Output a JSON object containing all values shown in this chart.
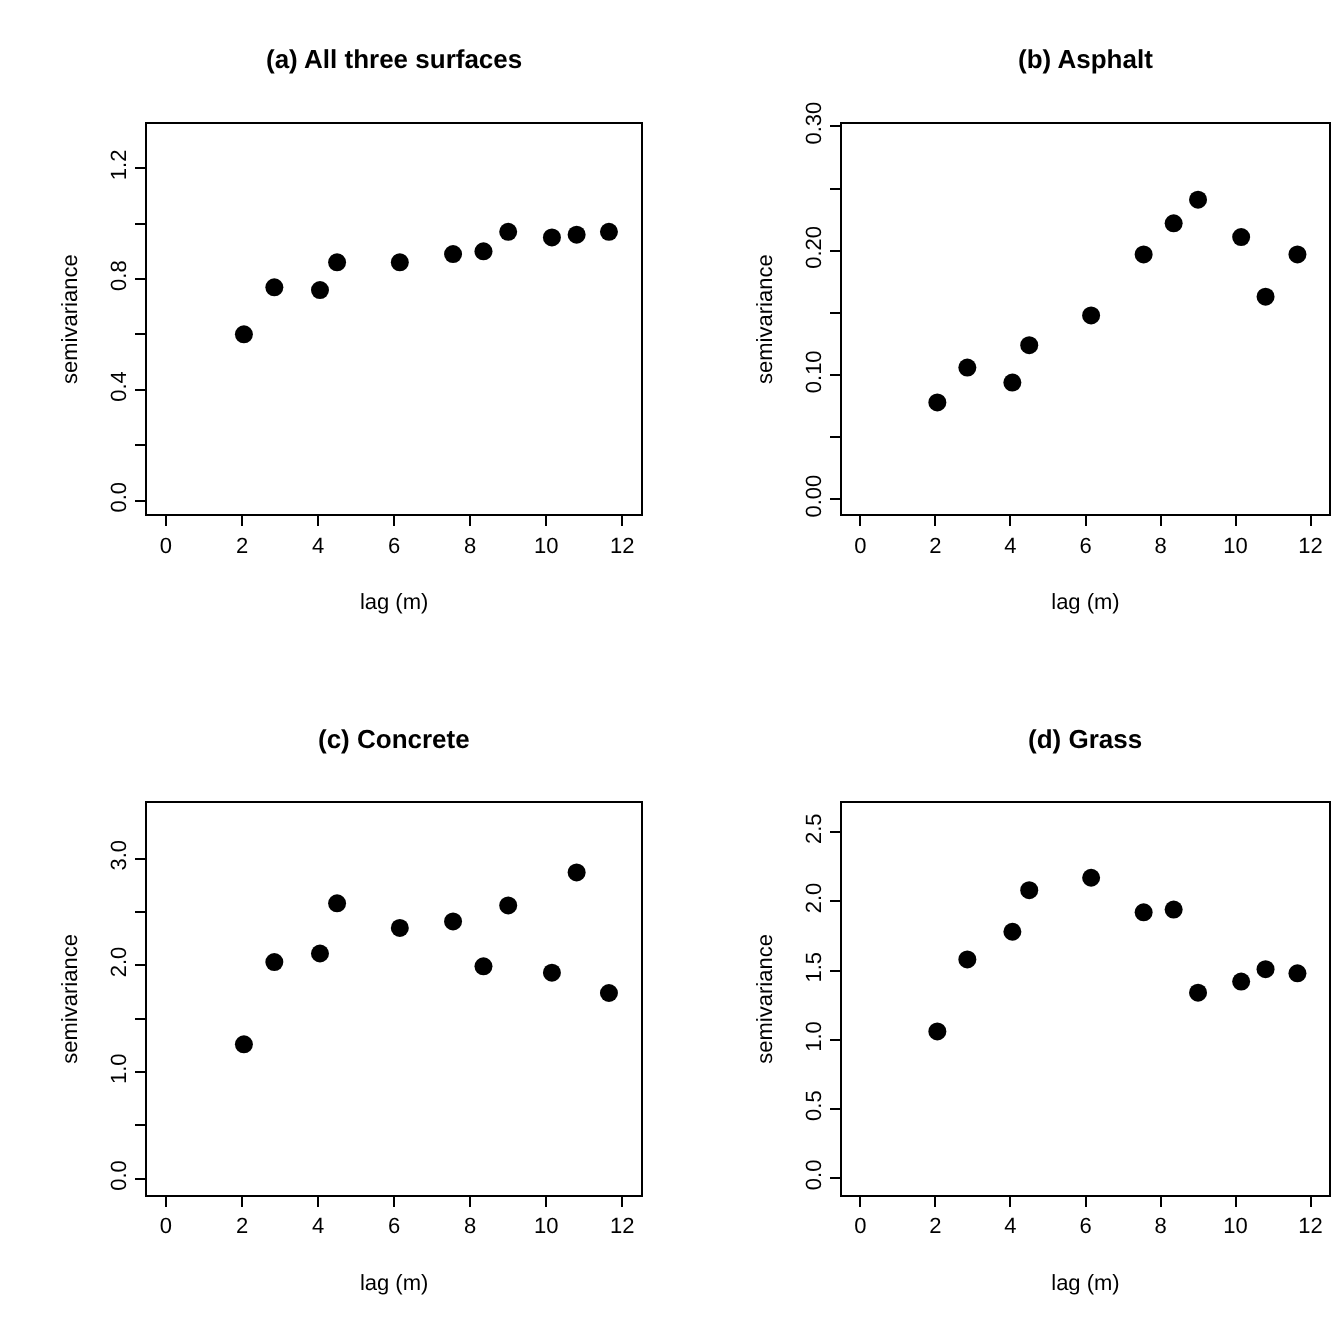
{
  "chart_data": [
    {
      "type": "scatter",
      "title": "(a) All three surfaces",
      "xlabel": "lag (m)",
      "ylabel": "semivariance",
      "marker": "circle",
      "x": [
        2.05,
        2.85,
        4.05,
        4.5,
        6.15,
        7.55,
        8.35,
        9.0,
        10.15,
        10.8,
        11.65
      ],
      "series": [
        {
          "color": "#000000",
          "values": [
            0.6,
            0.77,
            0.76,
            0.86,
            0.86,
            0.89,
            0.9,
            0.97,
            0.95,
            0.96,
            0.97
          ]
        }
      ],
      "xlim": [
        -0.5,
        12.5
      ],
      "xticks": [
        0,
        2,
        4,
        6,
        8,
        10,
        12
      ],
      "ylim": [
        -0.05,
        1.36
      ],
      "yticks": [
        {
          "value": 0,
          "label": "0.0"
        },
        {
          "value": 0.2,
          "label": null
        },
        0.4,
        {
          "value": 0.6,
          "label": null
        },
        0.8,
        {
          "value": 1.0,
          "label": null
        },
        1.2
      ]
    },
    {
      "type": "scatter",
      "title": "(b) Asphalt",
      "xlabel": "lag (m)",
      "ylabel": "semivariance",
      "marker": "circle",
      "x": [
        2.05,
        2.85,
        4.05,
        4.5,
        6.15,
        7.55,
        8.35,
        9.0,
        10.15,
        10.8,
        11.65
      ],
      "series": [
        {
          "color": "#000000",
          "values": [
            0.078,
            0.106,
            0.094,
            0.124,
            0.148,
            0.197,
            0.222,
            0.241,
            0.211,
            0.163,
            0.197
          ]
        }
      ],
      "xlim": [
        -0.5,
        12.5
      ],
      "xticks": [
        0,
        2,
        4,
        6,
        8,
        10,
        12
      ],
      "ylim": [
        -0.012,
        0.302
      ],
      "yticks": [
        {
          "value": 0.0,
          "label": "0.00"
        },
        {
          "value": 0.05,
          "label": null
        },
        {
          "value": 0.1,
          "label": "0.10"
        },
        {
          "value": 0.15,
          "label": null
        },
        {
          "value": 0.2,
          "label": "0.20"
        },
        {
          "value": 0.25,
          "label": null
        },
        {
          "value": 0.3,
          "label": "0.30"
        }
      ]
    },
    {
      "type": "scatter",
      "title": "(c) Concrete",
      "xlabel": "lag (m)",
      "ylabel": "semivariance",
      "marker": "circle",
      "x": [
        2.05,
        2.85,
        4.05,
        4.5,
        6.15,
        7.55,
        8.35,
        9.0,
        10.15,
        10.8,
        11.65
      ],
      "series": [
        {
          "color": "#000000",
          "values": [
            1.26,
            2.03,
            2.11,
            2.58,
            2.35,
            2.41,
            1.99,
            2.56,
            1.93,
            2.87,
            1.74
          ]
        }
      ],
      "xlim": [
        -0.5,
        12.5
      ],
      "xticks": [
        0,
        2,
        4,
        6,
        8,
        10,
        12
      ],
      "ylim": [
        -0.15,
        3.52
      ],
      "yticks": [
        {
          "value": 0,
          "label": "0.0"
        },
        {
          "value": 0.5,
          "label": null
        },
        {
          "value": 1,
          "label": "1.0"
        },
        {
          "value": 1.5,
          "label": null
        },
        {
          "value": 2,
          "label": "2.0"
        },
        {
          "value": 2.5,
          "label": null
        },
        {
          "value": 3,
          "label": "3.0"
        }
      ]
    },
    {
      "type": "scatter",
      "title": "(d) Grass",
      "xlabel": "lag (m)",
      "ylabel": "semivariance",
      "marker": "circle",
      "x": [
        2.05,
        2.85,
        4.05,
        4.5,
        6.15,
        7.55,
        8.35,
        9.0,
        10.15,
        10.8,
        11.65
      ],
      "series": [
        {
          "color": "#000000",
          "values": [
            1.06,
            1.58,
            1.78,
            2.08,
            2.17,
            1.92,
            1.94,
            1.34,
            1.42,
            1.51,
            1.48
          ]
        }
      ],
      "xlim": [
        -0.5,
        12.5
      ],
      "xticks": [
        0,
        2,
        4,
        6,
        8,
        10,
        12
      ],
      "ylim": [
        -0.12,
        2.71
      ],
      "yticks": [
        {
          "value": 0,
          "label": "0.0"
        },
        0.5,
        {
          "value": 1,
          "label": "1.0"
        },
        1.5,
        {
          "value": 2,
          "label": "2.0"
        },
        2.5
      ]
    }
  ]
}
